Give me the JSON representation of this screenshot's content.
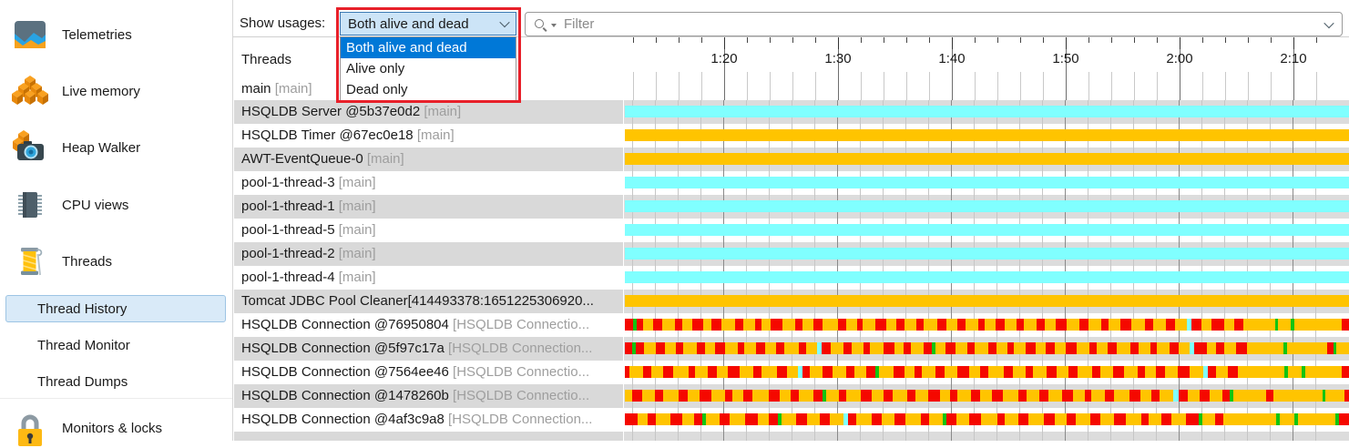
{
  "colors": {
    "bar_cyan": "#80ffff",
    "bar_orange": "#ffc400",
    "bar_red": "#f50800",
    "bar_green": "#11c411",
    "row_gray": "#d9d9d9",
    "timeline_gray": "#dcdcdc",
    "selected_item_bg": "#d9eaf8",
    "selected_item_border": "#9dc4e4",
    "dropdown_highlight": "#0078d7",
    "combo_bg": "#cce4f7",
    "combo_border": "#3d7ab3",
    "annotation_red": "#e8202a"
  },
  "sidebar": {
    "items": [
      {
        "label": "Telemetries",
        "icon": "telemetries",
        "type": "main"
      },
      {
        "label": "Live memory",
        "icon": "live-memory",
        "type": "main"
      },
      {
        "label": "Heap Walker",
        "icon": "heap-walker",
        "type": "main"
      },
      {
        "label": "CPU views",
        "icon": "cpu-views",
        "type": "main"
      },
      {
        "label": "Threads",
        "icon": "threads",
        "type": "main"
      },
      {
        "label": "Thread History",
        "type": "sub",
        "selected": true
      },
      {
        "label": "Thread Monitor",
        "type": "sub"
      },
      {
        "label": "Thread Dumps",
        "type": "sub"
      },
      {
        "label": "Monitors & locks",
        "icon": "monitors-locks",
        "type": "main"
      }
    ]
  },
  "topbar": {
    "show_usages_label": "Show usages:",
    "dropdown": {
      "selected": "Both alive and dead",
      "selected_index": 0,
      "options": [
        "Both alive and dead",
        "Alive only",
        "Dead only"
      ]
    },
    "filter_placeholder": "Filter"
  },
  "threads_panel": {
    "header": "Threads",
    "main_row": {
      "name": "main",
      "suffix": "[main]"
    }
  },
  "ruler": {
    "labels": [
      "1:20",
      "1:30",
      "1:40",
      "1:50",
      "2:00",
      "2:10"
    ],
    "major_offsets": [
      109,
      234,
      359,
      484,
      609,
      734
    ],
    "minor_spacing": 25,
    "major_spacing": 125
  },
  "threads": {
    "rows": [
      {
        "name": "HSQLDB Server @5b37e0d2",
        "suffix": "[main]",
        "bar": {
          "type": "solid",
          "color": "cyan"
        }
      },
      {
        "name": "HSQLDB Timer @67ec0e18",
        "suffix": "[main]",
        "bar": {
          "type": "solid",
          "color": "orange"
        }
      },
      {
        "name": "AWT-EventQueue-0",
        "suffix": "[main]",
        "bar": {
          "type": "solid",
          "color": "orange"
        }
      },
      {
        "name": "pool-1-thread-3",
        "suffix": "[main]",
        "bar": {
          "type": "solid",
          "color": "cyan"
        }
      },
      {
        "name": "pool-1-thread-1",
        "suffix": "[main]",
        "bar": {
          "type": "solid",
          "color": "cyan"
        }
      },
      {
        "name": "pool-1-thread-5",
        "suffix": "[main]",
        "bar": {
          "type": "solid",
          "color": "cyan"
        }
      },
      {
        "name": "pool-1-thread-2",
        "suffix": "[main]",
        "bar": {
          "type": "solid",
          "color": "cyan"
        }
      },
      {
        "name": "pool-1-thread-4",
        "suffix": "[main]",
        "bar": {
          "type": "solid",
          "color": "cyan"
        }
      },
      {
        "name": "Tomcat JDBC Pool Cleaner[414493378:1651225306920...",
        "suffix": "",
        "bar": {
          "type": "solid",
          "color": "orange"
        }
      },
      {
        "name": "HSQLDB Connection @76950804",
        "suffix": "[HSQLDB Connectio...",
        "bar": {
          "type": "segments",
          "pattern": "r8 g3 r6 o10 r8 o12 r7 o10 r10 o8 r9 o13 r8 o11 r6 o9 r11 o12 r7 o10 r9 o14 r8 o10 r6 o12 r10 o9 r8 o11 r7 o13 r9 o10 r8 o12 r6 o10 r9 o11 r7 o12 r8 o10 r10 o12 r9 o12 r7 o11 r10 o13 r8 o12 r9 o11 c4 r10 o9 r12 o10 r8 o30 g3 o12 g3 o45 r7"
        }
      },
      {
        "name": "HSQLDB Connection @5f97c17a",
        "suffix": "[HSQLDB Connection...",
        "bar": {
          "type": "segments",
          "pattern": "r7 g3 r8 o11 r9 o10 r7 o13 r8 o9 r10 o12 r6 o11 r9 o10 r8 o14 r7 o10 c4 r9 o12 r8 o11 r6 o13 r10 o9 r7 o12 r8 g3 o10 r9 o11 r7 o13 r8 o10 r6 o12 r9 o10 r8 o11 r10 o12 r7 o10 r9 o13 r8 o11 r6 o12 r9 o10 c4 r12 o9 r8 o11 r10 o35 g3 o38 r6 g3 o12"
        }
      },
      {
        "name": "HSQLDB Connection @7564ee46",
        "suffix": "[HSQLDB Connectio...",
        "bar": {
          "type": "segments",
          "pattern": "r4 o12 r7 o10 r9 o13 r6 o11 r8 o9 r10 o12 r7 o14 r8 o10 c4 r6 o11 r9 o12 r7 o10 r8 g3 o13 r9 o9 r6 o12 r8 o11 r10 o10 r7 o13 r8 o11 r6 o12 r9 o10 r8 o13 r7 o11 r9 o12 r6 o10 r8 o11 r10 o12 c4 r7 o10 r9 o40 g3 o12 g3 o32 r6"
        }
      },
      {
        "name": "HSQLDB Connection @1478260b",
        "suffix": "[HSQLDB Connectio...",
        "bar": {
          "type": "segments",
          "pattern": "o6 r9 o11 r7 o13 r8 o10 r10 o12 r6 o9 r8 o14 r9 o10 r7 o12 r8 g3 o11 r6 o13 r9 o10 r8 o12 r7 o11 r10 o9 r6 o12 r8 o10 r9 o13 r7 o11 r8 o12 r9 o10 r6 o11 r8 o13 r10 o9 r7 o12 c4 r8 o10 r9 o11 r6 g3 o28 r6 o42 g3 o16 r4"
        }
      },
      {
        "name": "HSQLDB Connection @4af3c9a8",
        "suffix": "[HSQLDB Connection...",
        "bar": {
          "type": "segments",
          "pattern": "r10 o8 r7 o12 r9 o10 r6 g3 o11 r8 o13 r10 o9 r7 g3 o12 r9 o10 r8 o11 c4 r6 o13 r8 o10 r9 o12 r7 o11 g3 r8 o10 r10 o13 r6 o11 r8 o12 r9 o10 r7 o12 r8 o11 r9 o13 r6 o10 r8 o12 r10 g3 o10 r7 o42 g3 o12 g3 o30 g3 r8"
        }
      },
      {
        "name": "",
        "suffix": "",
        "bar": null
      }
    ]
  }
}
